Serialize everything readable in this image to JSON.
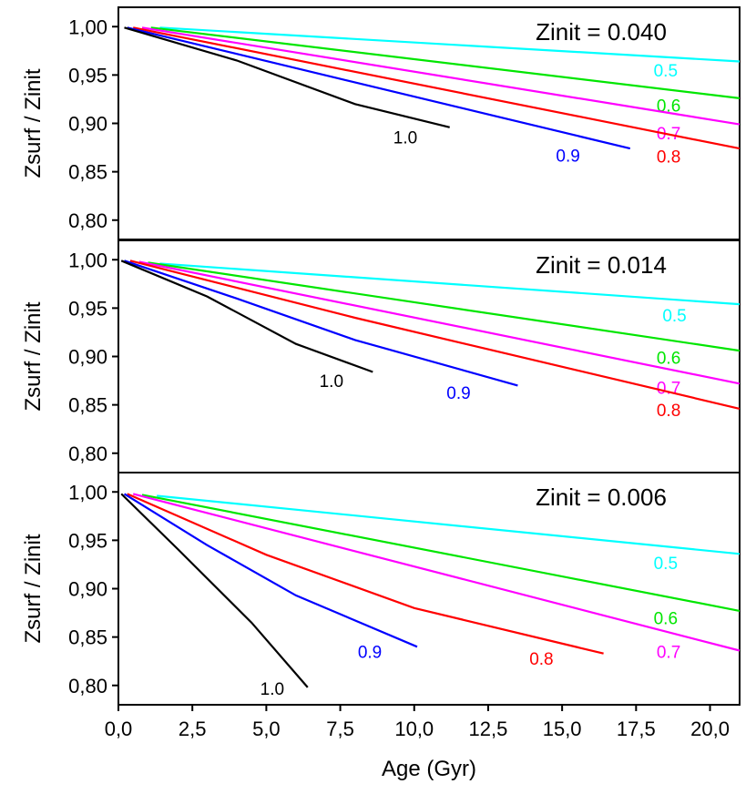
{
  "chart_data": {
    "type": "line",
    "xlabel": "Age (Gyr)",
    "ylabel": "Zsurf / Zinit",
    "xlim": [
      0,
      21
    ],
    "ylim": [
      0.78,
      1.02
    ],
    "xticks": [
      "0,0",
      "2,5",
      "5,0",
      "7,5",
      "10,0",
      "12,5",
      "15,0",
      "17,5",
      "20,0"
    ],
    "yticks": [
      "0,80",
      "0,85",
      "0,90",
      "0,95",
      "1,00"
    ],
    "series_colors": {
      "0.5": "#00ffff",
      "0.6": "#00e600",
      "0.7": "#ff00ff",
      "0.8": "#ff0000",
      "0.9": "#0000ff",
      "1.0": "#000000"
    },
    "panels": [
      {
        "title": "Zinit = 0.040",
        "series": [
          {
            "name": "0.5",
            "label": "0.5",
            "points": [
              [
                1.4,
                0.999
              ],
              [
                21.0,
                0.964
              ]
            ],
            "label_at": [
              18.5,
              0.955
            ]
          },
          {
            "name": "0.6",
            "label": "0.6",
            "points": [
              [
                1.1,
                0.999
              ],
              [
                21.0,
                0.926
              ]
            ],
            "label_at": [
              18.6,
              0.919
            ]
          },
          {
            "name": "0.7",
            "label": "0.7",
            "points": [
              [
                0.8,
                0.999
              ],
              [
                21.0,
                0.899
              ]
            ],
            "label_at": [
              18.6,
              0.89
            ]
          },
          {
            "name": "0.8",
            "label": "0.8",
            "points": [
              [
                0.5,
                0.999
              ],
              [
                21.0,
                0.874
              ]
            ],
            "label_at": [
              18.6,
              0.866
            ]
          },
          {
            "name": "0.9",
            "label": "0.9",
            "points": [
              [
                0.3,
                0.999
              ],
              [
                17.3,
                0.874
              ]
            ],
            "label_at": [
              15.2,
              0.867
            ]
          },
          {
            "name": "1.0",
            "label": "1.0",
            "points": [
              [
                0.2,
                0.999
              ],
              [
                4.0,
                0.965
              ],
              [
                8.0,
                0.92
              ],
              [
                11.2,
                0.896
              ]
            ],
            "label_at": [
              9.7,
              0.886
            ]
          }
        ]
      },
      {
        "title": "Zinit = 0.014",
        "series": [
          {
            "name": "0.5",
            "label": "0.5",
            "points": [
              [
                1.4,
                0.996
              ],
              [
                21.0,
                0.954
              ]
            ],
            "label_at": [
              18.8,
              0.943
            ]
          },
          {
            "name": "0.6",
            "label": "0.6",
            "points": [
              [
                1.0,
                0.997
              ],
              [
                21.0,
                0.906
              ]
            ],
            "label_at": [
              18.6,
              0.899
            ]
          },
          {
            "name": "0.7",
            "label": "0.7",
            "points": [
              [
                0.7,
                0.998
              ],
              [
                21.0,
                0.872
              ]
            ],
            "label_at": [
              18.6,
              0.868
            ]
          },
          {
            "name": "0.8",
            "label": "0.8",
            "points": [
              [
                0.4,
                0.999
              ],
              [
                8.0,
                0.94
              ],
              [
                21.0,
                0.846
              ]
            ],
            "label_at": [
              18.6,
              0.845
            ]
          },
          {
            "name": "0.9",
            "label": "0.9",
            "points": [
              [
                0.2,
                0.999
              ],
              [
                4.0,
                0.96
              ],
              [
                8.0,
                0.917
              ],
              [
                13.5,
                0.87
              ]
            ],
            "label_at": [
              11.5,
              0.863
            ]
          },
          {
            "name": "1.0",
            "label": "1.0",
            "points": [
              [
                0.1,
                0.999
              ],
              [
                3.0,
                0.962
              ],
              [
                6.0,
                0.913
              ],
              [
                8.6,
                0.884
              ]
            ],
            "label_at": [
              7.2,
              0.875
            ]
          }
        ]
      },
      {
        "title": "Zinit = 0.006",
        "series": [
          {
            "name": "0.5",
            "label": "0.5",
            "points": [
              [
                1.3,
                0.996
              ],
              [
                21.0,
                0.936
              ]
            ],
            "label_at": [
              18.5,
              0.927
            ]
          },
          {
            "name": "0.6",
            "label": "0.6",
            "points": [
              [
                0.8,
                0.997
              ],
              [
                21.0,
                0.877
              ]
            ],
            "label_at": [
              18.5,
              0.87
            ]
          },
          {
            "name": "0.7",
            "label": "0.7",
            "points": [
              [
                0.5,
                0.998
              ],
              [
                21.0,
                0.836
              ]
            ],
            "label_at": [
              18.6,
              0.835
            ]
          },
          {
            "name": "0.8",
            "label": "0.8",
            "points": [
              [
                0.3,
                0.998
              ],
              [
                5.0,
                0.935
              ],
              [
                10.0,
                0.88
              ],
              [
                16.4,
                0.833
              ]
            ],
            "label_at": [
              14.3,
              0.828
            ]
          },
          {
            "name": "0.9",
            "label": "0.9",
            "points": [
              [
                0.2,
                0.998
              ],
              [
                3.0,
                0.945
              ],
              [
                6.0,
                0.893
              ],
              [
                10.1,
                0.84
              ]
            ],
            "label_at": [
              8.5,
              0.835
            ]
          },
          {
            "name": "1.0",
            "label": "1.0",
            "points": [
              [
                0.1,
                0.998
              ],
              [
                2.0,
                0.941
              ],
              [
                4.5,
                0.865
              ],
              [
                6.4,
                0.798
              ]
            ],
            "label_at": [
              5.2,
              0.797
            ]
          }
        ]
      }
    ]
  }
}
